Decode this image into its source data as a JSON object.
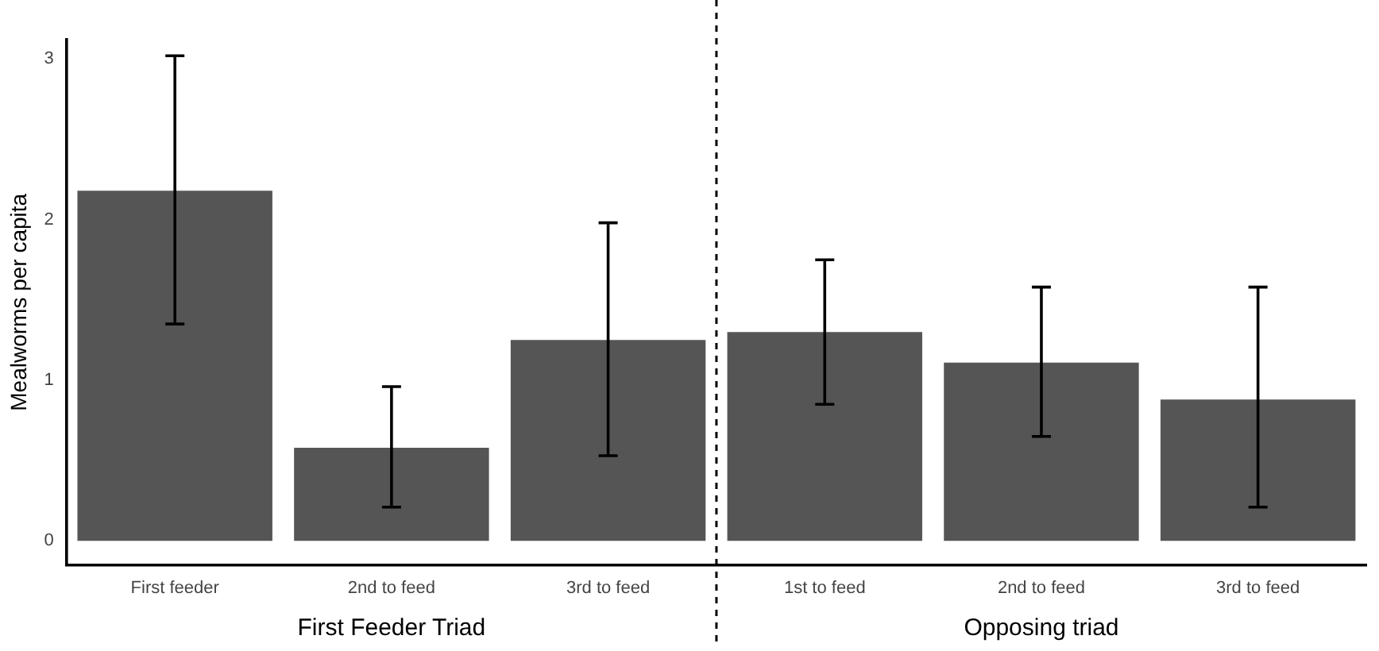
{
  "chart_data": {
    "type": "bar",
    "ylabel": "Mealworms per capita",
    "categories": [
      "First feeder",
      "2nd to feed",
      "3rd to feed",
      "1st to feed",
      "2nd to feed",
      "3rd to feed"
    ],
    "values": [
      2.18,
      0.58,
      1.25,
      1.3,
      1.11,
      0.88
    ],
    "errors": [
      [
        1.35,
        3.02
      ],
      [
        0.21,
        0.96
      ],
      [
        0.53,
        1.98
      ],
      [
        0.85,
        1.75
      ],
      [
        0.65,
        1.58
      ],
      [
        0.21,
        1.58
      ]
    ],
    "color": "#555555",
    "ylim": [
      -0.15,
      3.12
    ],
    "yticks": [
      0,
      1,
      2,
      3
    ],
    "grid": false,
    "legend": false,
    "annotations": [
      "First Feeder Triad",
      "Opposing triad"
    ]
  }
}
